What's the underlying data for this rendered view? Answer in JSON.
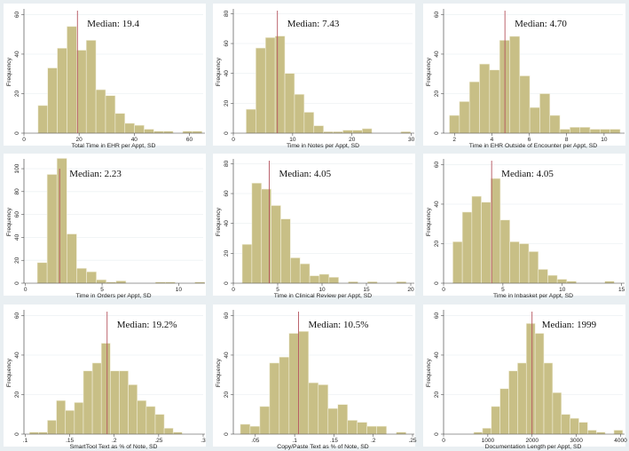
{
  "colors": {
    "bar": "#c8bf86",
    "bar_edge": "#f2efdc",
    "median": "#b5545e",
    "frame": "#e9eff2",
    "plot": "#ffffff",
    "grid": "#eef2f4"
  },
  "chart_data": [
    {
      "type": "bar",
      "title": "",
      "xlabel": "Total Time in EHR per Appt, SD",
      "ylabel": "Frequency",
      "median_label": "Median: 19.4",
      "median": 19.4,
      "bin_start": 5.1,
      "bin_width": 3.5,
      "counts": [
        14,
        33,
        43,
        54,
        42,
        47,
        22,
        19,
        10,
        5,
        4,
        2,
        1,
        1,
        0,
        1,
        1
      ],
      "xlim": [
        0,
        65
      ],
      "ylim": [
        0,
        62
      ],
      "xticks": [
        "0",
        "20",
        "40",
        "60"
      ],
      "yticks": [
        "0",
        "20",
        "40",
        "60"
      ],
      "grid": true
    },
    {
      "type": "bar",
      "xlabel": "Time in Notes per Appt, SD",
      "ylabel": "Frequency",
      "median_label": "Median: 7.43",
      "median": 7.43,
      "bin_start": 2.16,
      "bin_width": 1.63,
      "counts": [
        16,
        57,
        64,
        65,
        40,
        26,
        14,
        5,
        1,
        1,
        2,
        2,
        3,
        0,
        0,
        0,
        1
      ],
      "xlim": [
        0,
        30.2
      ],
      "ylim": [
        0,
        82
      ],
      "xticks": [
        "0",
        "10",
        "20",
        "30"
      ],
      "yticks": [
        "0",
        "20",
        "40",
        "60",
        "80"
      ],
      "grid": true
    },
    {
      "type": "bar",
      "xlabel": "Time in EHR Outside of Encounter per Appt, SD",
      "ylabel": "Frequency",
      "median_label": "Median: 4.70",
      "median": 4.7,
      "bin_start": 1.73,
      "bin_width": 0.537,
      "counts": [
        9,
        16,
        26,
        35,
        32,
        47,
        49,
        29,
        13,
        20,
        9,
        2,
        3,
        3,
        2,
        2,
        2
      ],
      "xlim": [
        1.42,
        11
      ],
      "ylim": [
        0,
        62
      ],
      "xticks": [
        "2",
        "4",
        "6",
        "8",
        "10"
      ],
      "yticks": [
        "0",
        "20",
        "40",
        "60"
      ],
      "grid": true
    },
    {
      "type": "bar",
      "xlabel": "Time in Orders per Appt, SD",
      "ylabel": "Frequency",
      "median_label": "Median: 2.23",
      "median": 2.23,
      "median_top": 100,
      "bin_start": 0.77,
      "bin_width": 0.643,
      "counts": [
        18,
        95,
        109,
        43,
        13,
        10,
        3,
        1,
        2,
        0,
        0,
        0,
        1,
        1,
        0,
        0,
        1
      ],
      "xlim": [
        -0.1,
        11.6
      ],
      "ylim": [
        0,
        107
      ],
      "xticks": [
        "0",
        "5",
        "10"
      ],
      "yticks": [
        "0",
        "20",
        "40",
        "60",
        "80",
        "100"
      ],
      "grid": true
    },
    {
      "type": "bar",
      "xlabel": "Time in Clinical Review per Appt, SD",
      "ylabel": "Frequency",
      "median_label": "Median: 4.05",
      "median": 4.05,
      "bin_start": 1.0,
      "bin_width": 1.087,
      "counts": [
        26,
        67,
        63,
        52,
        43,
        17,
        13,
        5,
        6,
        4,
        0,
        1,
        0,
        1,
        0,
        0,
        1
      ],
      "xlim": [
        0,
        20.2
      ],
      "ylim": [
        0,
        82
      ],
      "xticks": [
        "0",
        "5",
        "10",
        "15",
        "20"
      ],
      "yticks": [
        "0",
        "20",
        "40",
        "60",
        "80"
      ],
      "grid": true
    },
    {
      "type": "bar",
      "xlabel": "Time in Inbasket per Appt, SD",
      "ylabel": "Frequency",
      "median_label": "Median: 4.05",
      "median": 4.05,
      "bin_start": 0.78,
      "bin_width": 0.8,
      "counts": [
        21,
        36,
        44,
        41,
        53,
        32,
        21,
        20,
        16,
        7,
        4,
        2,
        1,
        0,
        0,
        0,
        1
      ],
      "xlim": [
        0,
        15.1
      ],
      "ylim": [
        0,
        62
      ],
      "xticks": [
        "0",
        "5",
        "10",
        "15"
      ],
      "yticks": [
        "0",
        "20",
        "40",
        "60"
      ],
      "grid": true
    },
    {
      "type": "bar",
      "xlabel": "SmartTool Text as % of Note, SD",
      "ylabel": "Frequency",
      "median_label": "Median: 19.2%",
      "median": 0.192,
      "bin_start": 0.1047,
      "bin_width": 0.0101,
      "counts": [
        1,
        1,
        7,
        17,
        12,
        16,
        32,
        36,
        46,
        32,
        32,
        25,
        17,
        14,
        10,
        3,
        1
      ],
      "xlim": [
        0.0985,
        0.3
      ],
      "ylim": [
        0,
        62
      ],
      "xticks": [
        ".1",
        ".15",
        ".2",
        ".25",
        ".3"
      ],
      "yticks": [
        "0",
        "20",
        "40",
        "60"
      ],
      "grid": true
    },
    {
      "type": "bar",
      "xlabel": "Copy/Paste Text as % of Note, SD",
      "ylabel": "Frequency",
      "median_label": "Median: 10.5%",
      "median": 0.105,
      "bin_start": 0.0309,
      "bin_width": 0.0124,
      "counts": [
        5,
        4,
        14,
        36,
        39,
        51,
        52,
        26,
        25,
        13,
        15,
        7,
        6,
        4,
        4,
        0,
        1
      ],
      "xlim": [
        0.022,
        0.25
      ],
      "ylim": [
        0,
        62
      ],
      "xticks": [
        ".05",
        ".1",
        ".15",
        ".2",
        ".25"
      ],
      "yticks": [
        "0",
        "20",
        "40",
        "60"
      ],
      "grid": true
    },
    {
      "type": "bar",
      "xlabel": "Documentation Length per Appt, SD",
      "ylabel": "Frequency",
      "median_label": "Median: 1999",
      "median": 1999,
      "bin_start": 682,
      "bin_width": 198,
      "counts": [
        1,
        3,
        14,
        23,
        32,
        36,
        56,
        51,
        36,
        21,
        10,
        8,
        6,
        2,
        1,
        0,
        2
      ],
      "xlim": [
        0,
        4050
      ],
      "ylim": [
        0,
        62
      ],
      "xticks": [
        "0",
        "1000",
        "2000",
        "3000",
        "4000"
      ],
      "yticks": [
        "0",
        "20",
        "40",
        "60"
      ],
      "grid": true
    }
  ]
}
